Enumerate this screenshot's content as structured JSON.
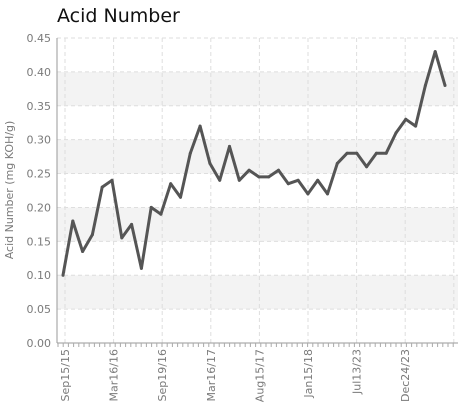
{
  "chart_data": {
    "type": "line",
    "title": "Acid Number",
    "xlabel": "",
    "ylabel": "Acid Number (mg KOH/g)",
    "ylim": [
      0,
      0.45
    ],
    "yticks": [
      "0.00",
      "0.05",
      "0.10",
      "0.15",
      "0.20",
      "0.25",
      "0.30",
      "0.35",
      "0.40",
      "0.45"
    ],
    "xtick_labels": [
      "Sep15/15",
      "Mar16/16",
      "Sep19/16",
      "Mar16/17",
      "Aug15/17",
      "Jan15/18",
      "Jul13/23",
      "Dec24/23"
    ],
    "grid": true,
    "line_color": "#555555",
    "band_color": "#f3f3f3",
    "series": [
      {
        "values": [
          0.1,
          0.18,
          0.135,
          0.16,
          0.23,
          0.24,
          0.155,
          0.175,
          0.11,
          0.2,
          0.19,
          0.235,
          0.215,
          0.28,
          0.32,
          0.265,
          0.24,
          0.29,
          0.24,
          0.255,
          0.245,
          0.245,
          0.255,
          0.235,
          0.24,
          0.22,
          0.24,
          0.22,
          0.265,
          0.28,
          0.28,
          0.26,
          0.28,
          0.28,
          0.31,
          0.33,
          0.32,
          0.38,
          0.43,
          0.38
        ]
      }
    ]
  }
}
